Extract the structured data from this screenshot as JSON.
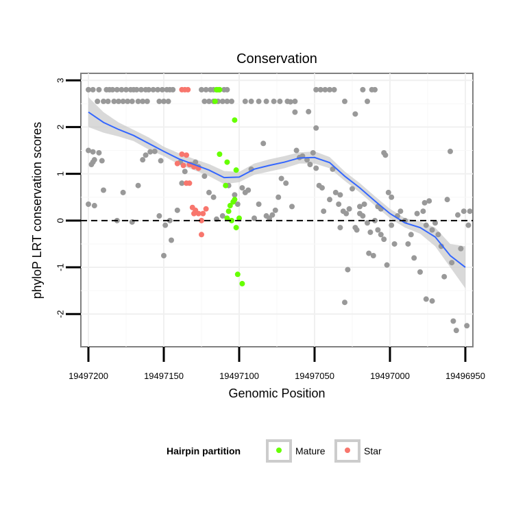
{
  "chart_data": {
    "type": "scatter",
    "title": "Conservation",
    "xlabel": "Genomic Position",
    "ylabel": "phyloP LRT conservation scores",
    "x_reversed": true,
    "xlim": [
      19497205,
      19496945
    ],
    "ylim": [
      -2.7,
      3.15
    ],
    "x_ticks": [
      19497200,
      19497150,
      19497100,
      19497050,
      19497000,
      19496950
    ],
    "x_tick_labels": [
      "19497200",
      "19497150",
      "19497100",
      "19497050",
      "19497000",
      "19496950"
    ],
    "y_ticks": [
      3,
      2,
      1,
      0,
      -1,
      -2
    ],
    "y_tick_labels": [
      "3",
      "2",
      "1",
      "0",
      "-1",
      "-2"
    ],
    "reference_line": {
      "y": 0,
      "style": "dashed"
    },
    "legend": {
      "title": "Hairpin partition",
      "position": "bottom",
      "entries": [
        {
          "label": "Mature",
          "color": "#66FF00"
        },
        {
          "label": "Star",
          "color": "#F8766D"
        }
      ]
    },
    "colors": {
      "other": "#999999",
      "mature": "#66FF00",
      "star": "#F8766D",
      "smooth": "#3366FF",
      "band": "#CCCCCC"
    },
    "series": [
      {
        "name": "Other",
        "points": [
          [
            19497200,
            2.8
          ],
          [
            19497197,
            2.8
          ],
          [
            19497193,
            2.8
          ],
          [
            19497188,
            2.8
          ],
          [
            19497186,
            2.8
          ],
          [
            19497184,
            2.8
          ],
          [
            19497181,
            2.8
          ],
          [
            19497178,
            2.8
          ],
          [
            19497175,
            2.8
          ],
          [
            19497172,
            2.8
          ],
          [
            19497170,
            2.8
          ],
          [
            19497168,
            2.8
          ],
          [
            19497165,
            2.8
          ],
          [
            19497162,
            2.8
          ],
          [
            19497160,
            2.8
          ],
          [
            19497157,
            2.8
          ],
          [
            19497154,
            2.8
          ],
          [
            19497151,
            2.8
          ],
          [
            19497148,
            2.8
          ],
          [
            19497146,
            2.8
          ],
          [
            19497144,
            2.8
          ],
          [
            19497194,
            2.55
          ],
          [
            19497190,
            2.55
          ],
          [
            19497187,
            2.55
          ],
          [
            19497183,
            2.55
          ],
          [
            19497180,
            2.55
          ],
          [
            19497177,
            2.55
          ],
          [
            19497174,
            2.55
          ],
          [
            19497171,
            2.55
          ],
          [
            19497167,
            2.55
          ],
          [
            19497164,
            2.55
          ],
          [
            19497161,
            2.55
          ],
          [
            19497153,
            2.55
          ],
          [
            19497150,
            2.55
          ],
          [
            19497147,
            2.55
          ],
          [
            19497200,
            1.5
          ],
          [
            19497197,
            1.47
          ],
          [
            19497193,
            1.45
          ],
          [
            19497197,
            1.25
          ],
          [
            19497198,
            1.2
          ],
          [
            19497196,
            1.3
          ],
          [
            19497191,
            1.28
          ],
          [
            19497200,
            0.35
          ],
          [
            19497196,
            0.32
          ],
          [
            19497190,
            0.65
          ],
          [
            19497181,
            0.0
          ],
          [
            19497177,
            0.6
          ],
          [
            19497171,
            -0.03
          ],
          [
            19497167,
            0.75
          ],
          [
            19497164,
            1.3
          ],
          [
            19497162,
            1.4
          ],
          [
            19497159,
            1.47
          ],
          [
            19497156,
            1.48
          ],
          [
            19497152,
            1.28
          ],
          [
            19497153,
            0.1
          ],
          [
            19497149,
            -0.1
          ],
          [
            19497146,
            0.0
          ],
          [
            19497145,
            -0.42
          ],
          [
            19497141,
            0.22
          ],
          [
            19497139,
            1.25
          ],
          [
            19497138,
            0.8
          ],
          [
            19497136,
            1.05
          ],
          [
            19497132,
            1.2
          ],
          [
            19497129,
            1.25
          ],
          [
            19497127,
            1.15
          ],
          [
            19497123,
            0.95
          ],
          [
            19497120,
            0.6
          ],
          [
            19497117,
            0.5
          ],
          [
            19497115,
            0.03
          ],
          [
            19497111,
            0.1
          ],
          [
            19497107,
            0.75
          ],
          [
            19497103,
            0.55
          ],
          [
            19497101,
            0.35
          ],
          [
            19497098,
            0.7
          ],
          [
            19497096,
            0.6
          ],
          [
            19497094,
            0.65
          ],
          [
            19497092,
            1.1
          ],
          [
            19497090,
            0.05
          ],
          [
            19497087,
            0.35
          ],
          [
            19497084,
            1.65
          ],
          [
            19497082,
            0.1
          ],
          [
            19497080,
            0.05
          ],
          [
            19497078,
            0.12
          ],
          [
            19497076,
            0.22
          ],
          [
            19497074,
            0.5
          ],
          [
            19497072,
            0.9
          ],
          [
            19497069,
            0.8
          ],
          [
            19497065,
            0.3
          ],
          [
            19497062,
            1.5
          ],
          [
            19497060,
            1.35
          ],
          [
            19497058,
            1.38
          ],
          [
            19497055,
            1.3
          ],
          [
            19497053,
            1.2
          ],
          [
            19497051,
            1.45
          ],
          [
            19497049,
            1.12
          ],
          [
            19497045,
            0.7
          ],
          [
            19497047,
            0.75
          ],
          [
            19497044,
            0.2
          ],
          [
            19497040,
            0.45
          ],
          [
            19497038,
            1.1
          ],
          [
            19497036,
            0.6
          ],
          [
            19497034,
            0.35
          ],
          [
            19497033,
            0.55
          ],
          [
            19497031,
            0.2
          ],
          [
            19497029,
            0.15
          ],
          [
            19497027,
            0.25
          ],
          [
            19497025,
            0.68
          ],
          [
            19497023,
            -0.15
          ],
          [
            19497022,
            -0.2
          ],
          [
            19497020,
            0.3
          ],
          [
            19497018,
            0.1
          ],
          [
            19497017,
            0.35
          ],
          [
            19497015,
            -0.05
          ],
          [
            19497013,
            -0.25
          ],
          [
            19497011,
            -0.75
          ],
          [
            19497010,
            0.0
          ],
          [
            19497008,
            0.3
          ],
          [
            19497006,
            0.25
          ],
          [
            19497004,
            1.45
          ],
          [
            19497003,
            1.4
          ],
          [
            19497001,
            0.6
          ],
          [
            19496999,
            0.5
          ],
          [
            19497033,
            -0.15
          ],
          [
            19497030,
            -1.75
          ],
          [
            19497020,
            0.15
          ],
          [
            19497014,
            -0.7
          ],
          [
            19497008,
            -0.2
          ],
          [
            19497006,
            -0.3
          ],
          [
            19497004,
            -0.4
          ],
          [
            19497002,
            -0.95
          ],
          [
            19496999,
            -0.1
          ],
          [
            19496997,
            -0.5
          ],
          [
            19496995,
            0.1
          ],
          [
            19496993,
            0.2
          ],
          [
            19496990,
            0.0
          ],
          [
            19496988,
            -0.5
          ],
          [
            19496986,
            -0.3
          ],
          [
            19496984,
            -0.8
          ],
          [
            19496982,
            0.15
          ],
          [
            19496980,
            -1.1
          ],
          [
            19496978,
            0.2
          ],
          [
            19496977,
            0.38
          ],
          [
            19496976,
            -0.1
          ],
          [
            19496974,
            0.42
          ],
          [
            19496972,
            -0.2
          ],
          [
            19496970,
            -0.05
          ],
          [
            19496968,
            -0.3
          ],
          [
            19496966,
            -0.55
          ],
          [
            19496964,
            -1.2
          ],
          [
            19496962,
            0.45
          ],
          [
            19496960,
            1.48
          ],
          [
            19496959,
            -0.9
          ],
          [
            19496958,
            -2.15
          ],
          [
            19496956,
            -2.35
          ],
          [
            19496955,
            0.12
          ],
          [
            19496953,
            -0.6
          ],
          [
            19496951,
            0.2
          ],
          [
            19496949,
            -2.25
          ],
          [
            19496948,
            -0.1
          ],
          [
            19496947,
            0.2
          ],
          [
            19497150,
            -0.75
          ],
          [
            19497028,
            -1.05
          ],
          [
            19496976,
            -1.68
          ],
          [
            19496972,
            -1.72
          ],
          [
            19497125,
            2.8
          ],
          [
            19497122,
            2.8
          ],
          [
            19497119,
            2.8
          ],
          [
            19497117,
            2.8
          ],
          [
            19497115,
            2.8
          ],
          [
            19497113,
            2.8
          ],
          [
            19497110,
            2.8
          ],
          [
            19497108,
            2.8
          ],
          [
            19497123,
            2.55
          ],
          [
            19497120,
            2.55
          ],
          [
            19497117,
            2.55
          ],
          [
            19497114,
            2.55
          ],
          [
            19497111,
            2.55
          ],
          [
            19497108,
            2.55
          ],
          [
            19497105,
            2.55
          ],
          [
            19497096,
            2.55
          ],
          [
            19497092,
            2.55
          ],
          [
            19497087,
            2.55
          ],
          [
            19497082,
            2.55
          ],
          [
            19497077,
            2.55
          ],
          [
            19497073,
            2.55
          ],
          [
            19497068,
            2.55
          ],
          [
            19497063,
            2.55
          ],
          [
            19497049,
            2.8
          ],
          [
            19497046,
            2.8
          ],
          [
            19497043,
            2.8
          ],
          [
            19497040,
            2.8
          ],
          [
            19497037,
            2.8
          ],
          [
            19497030,
            2.55
          ],
          [
            19497023,
            2.28
          ],
          [
            19497049,
            1.98
          ],
          [
            19497054,
            2.33
          ],
          [
            19497063,
            2.32
          ],
          [
            19497066,
            2.54
          ],
          [
            19497012,
            2.8
          ],
          [
            19497018,
            2.8
          ],
          [
            19497010,
            2.8
          ],
          [
            19497015,
            2.55
          ]
        ]
      },
      {
        "name": "Mature",
        "points": [
          [
            19497115,
            2.8
          ],
          [
            19497114,
            2.8
          ],
          [
            19497113,
            2.8
          ],
          [
            19497116,
            2.55
          ],
          [
            19497103,
            2.15
          ],
          [
            19497108,
            1.25
          ],
          [
            19497102,
            1.08
          ],
          [
            19497113,
            1.42
          ],
          [
            19497109,
            0.75
          ],
          [
            19497106,
            0.32
          ],
          [
            19497104,
            0.4
          ],
          [
            19497103,
            0.45
          ],
          [
            19497107,
            0.2
          ],
          [
            19497108,
            0.05
          ],
          [
            19497105,
            0.0
          ],
          [
            19497102,
            -0.15
          ],
          [
            19497100,
            0.05
          ],
          [
            19497101,
            -1.15
          ],
          [
            19497098,
            -1.35
          ]
        ]
      },
      {
        "name": "Star",
        "points": [
          [
            19497138,
            2.8
          ],
          [
            19497136,
            2.8
          ],
          [
            19497134,
            2.8
          ],
          [
            19497138,
            1.42
          ],
          [
            19497135,
            1.4
          ],
          [
            19497141,
            1.22
          ],
          [
            19497137,
            1.18
          ],
          [
            19497133,
            1.2
          ],
          [
            19497130,
            1.15
          ],
          [
            19497127,
            1.12
          ],
          [
            19497135,
            0.8
          ],
          [
            19497133,
            0.8
          ],
          [
            19497131,
            0.28
          ],
          [
            19497130,
            0.15
          ],
          [
            19497129,
            0.22
          ],
          [
            19497127,
            0.15
          ],
          [
            19497125,
            0.0
          ],
          [
            19497124,
            0.15
          ],
          [
            19497122,
            0.25
          ],
          [
            19497125,
            -0.3
          ]
        ]
      }
    ],
    "smooth_line": {
      "x": [
        19497200,
        19497190,
        19497180,
        19497170,
        19497160,
        19497150,
        19497140,
        19497130,
        19497120,
        19497110,
        19497100,
        19497090,
        19497080,
        19497070,
        19497060,
        19497050,
        19497040,
        19497030,
        19497020,
        19497010,
        19497000,
        19496990,
        19496980,
        19496970,
        19496960,
        19496950
      ],
      "y": [
        2.32,
        2.1,
        1.95,
        1.82,
        1.65,
        1.48,
        1.32,
        1.2,
        1.08,
        0.92,
        0.93,
        1.1,
        1.18,
        1.25,
        1.34,
        1.35,
        1.24,
        0.95,
        0.7,
        0.42,
        0.15,
        -0.05,
        -0.15,
        -0.35,
        -0.75,
        -1.0
      ],
      "lower": [
        2.0,
        1.88,
        1.8,
        1.7,
        1.52,
        1.38,
        1.2,
        1.08,
        0.95,
        0.78,
        0.82,
        0.98,
        1.05,
        1.12,
        1.22,
        1.22,
        1.12,
        0.85,
        0.6,
        0.32,
        0.05,
        -0.15,
        -0.28,
        -0.55,
        -1.0,
        -1.45
      ],
      "upper": [
        2.64,
        2.32,
        2.1,
        1.94,
        1.78,
        1.58,
        1.44,
        1.32,
        1.21,
        1.06,
        1.04,
        1.22,
        1.31,
        1.38,
        1.46,
        1.48,
        1.36,
        1.05,
        0.8,
        0.52,
        0.25,
        0.05,
        -0.02,
        -0.15,
        -0.5,
        -0.55
      ]
    }
  }
}
